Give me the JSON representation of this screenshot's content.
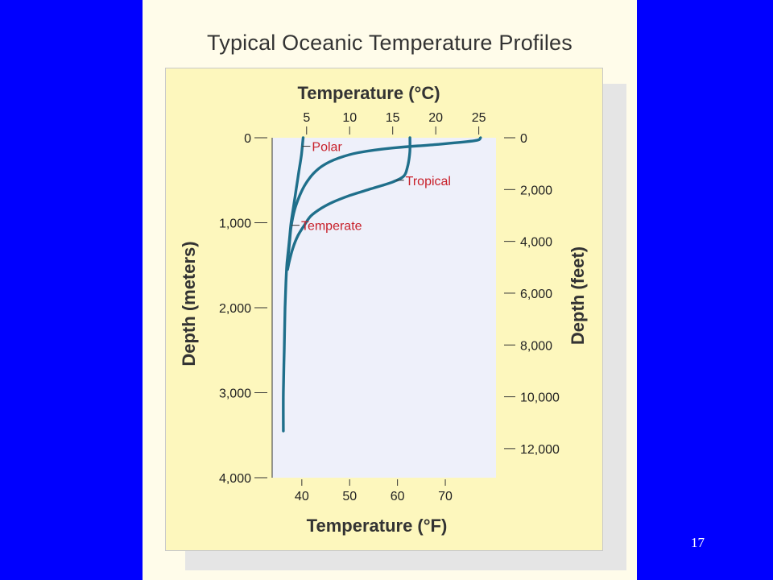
{
  "page_number": "17",
  "chart_data": {
    "type": "line",
    "title": "Typical Oceanic Temperature Profiles",
    "x_top_label": "Temperature (°C)",
    "x_bottom_label": "Temperature (°F)",
    "y_left_label": "Depth (meters)",
    "y_right_label": "Depth (feet)",
    "x_top_ticks": [
      "5",
      "10",
      "15",
      "20",
      "25"
    ],
    "x_top_tick_values": [
      5,
      10,
      15,
      20,
      25
    ],
    "x_bottom_ticks": [
      "40",
      "50",
      "60",
      "70"
    ],
    "x_bottom_tick_values": [
      40,
      50,
      60,
      70
    ],
    "y_left_ticks": [
      "0",
      "1,000",
      "2,000",
      "3,000",
      "4,000"
    ],
    "y_left_tick_values": [
      0,
      1000,
      2000,
      3000,
      4000
    ],
    "y_right_ticks": [
      "0",
      "2,000",
      "4,000",
      "6,000",
      "8,000",
      "10,000",
      "12,000"
    ],
    "y_right_tick_values": [
      0,
      2000,
      4000,
      6000,
      8000,
      10000,
      12000
    ],
    "xlim_celsius": [
      1,
      27
    ],
    "ylim_meters": [
      0,
      4000
    ],
    "colors": {
      "line": "#1f6f8b",
      "label": "#c8202a",
      "plot_bg": "#eef0fa",
      "frame_bg": "#fdf7bd"
    },
    "series": [
      {
        "name": "Polar",
        "label_depth_m": 100,
        "points": [
          [
            4.6,
            0
          ],
          [
            4.4,
            200
          ],
          [
            4.1,
            400
          ],
          [
            3.8,
            600
          ],
          [
            3.5,
            800
          ],
          [
            3.2,
            1000
          ],
          [
            3.0,
            1200
          ],
          [
            2.8,
            1400
          ],
          [
            2.7,
            1500
          ],
          [
            2.6,
            1700
          ],
          [
            2.5,
            2000
          ],
          [
            2.4,
            2500
          ],
          [
            2.3,
            3000
          ],
          [
            2.3,
            3450
          ]
        ]
      },
      {
        "name": "Tropical",
        "label_depth_m": 500,
        "points": [
          [
            17.0,
            0
          ],
          [
            17.0,
            150
          ],
          [
            16.9,
            250
          ],
          [
            16.7,
            350
          ],
          [
            16.3,
            450
          ],
          [
            15.0,
            520
          ],
          [
            12.5,
            600
          ],
          [
            10.0,
            680
          ],
          [
            8.0,
            760
          ],
          [
            6.7,
            830
          ],
          [
            5.5,
            920
          ],
          [
            4.8,
            1020
          ],
          [
            4.0,
            1150
          ],
          [
            3.4,
            1300
          ],
          [
            3.0,
            1450
          ],
          [
            2.8,
            1550
          ]
        ]
      },
      {
        "name": "Temperate",
        "label_depth_m": 1030,
        "points": [
          [
            25.2,
            0
          ],
          [
            24.5,
            35
          ],
          [
            20.0,
            80
          ],
          [
            15.0,
            120
          ],
          [
            11.0,
            175
          ],
          [
            8.7,
            240
          ],
          [
            7.0,
            320
          ],
          [
            5.8,
            420
          ],
          [
            4.9,
            540
          ],
          [
            4.2,
            680
          ],
          [
            3.6,
            850
          ],
          [
            3.2,
            1050
          ],
          [
            3.0,
            1250
          ],
          [
            2.8,
            1450
          ],
          [
            2.7,
            1550
          ]
        ]
      }
    ]
  }
}
